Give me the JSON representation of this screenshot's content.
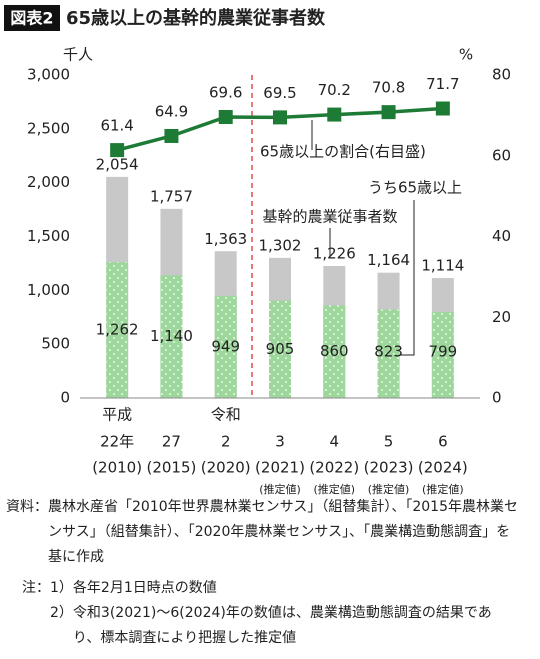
{
  "chart_data": {
    "type": "bar-line",
    "figure_label": "図表2",
    "title": "65歳以上の基幹的農業従事者数",
    "y_unit": "千人",
    "y2_unit": "%",
    "era_labels": [
      "平成",
      null,
      "令和",
      null,
      null,
      null,
      null
    ],
    "categories": [
      "22年",
      "27",
      "2",
      "3",
      "4",
      "5",
      "6"
    ],
    "years": [
      "(2010)",
      "(2015)",
      "(2020)",
      "(2021)",
      "(2022)",
      "(2023)",
      "(2024)"
    ],
    "estimate_labels": [
      null,
      null,
      null,
      "(推定値)",
      "(推定値)",
      "(推定値)",
      "(推定値)"
    ],
    "ylim": [
      0,
      3000
    ],
    "yticks": [
      0,
      500,
      {
        "value": 1000,
        "label": "1,000"
      },
      {
        "value": 1500,
        "label": "1,500"
      },
      {
        "value": 2000,
        "label": "2,000"
      },
      {
        "value": 2500,
        "label": "2,500"
      },
      {
        "value": 3000,
        "label": "3,000"
      }
    ],
    "y2lim": [
      0,
      80
    ],
    "y2ticks": [
      0,
      20,
      40,
      60,
      80
    ],
    "series": [
      {
        "name": "基幹的農業従事者数",
        "color": "#c8c8c8",
        "kind": "bar",
        "values": [
          2054,
          1757,
          1363,
          1302,
          1226,
          1164,
          1114
        ],
        "value_labels": [
          "2,054",
          "1,757",
          "1,363",
          "1,302",
          "1,226",
          "1,164",
          "1,114"
        ]
      },
      {
        "name": "うち65歳以上",
        "color": "#9ed79c",
        "kind": "bar",
        "values": [
          1262,
          1140,
          949,
          905,
          860,
          823,
          799
        ],
        "value_labels": [
          "1,262",
          "1,140",
          "949",
          "905",
          "860",
          "823",
          "799"
        ]
      },
      {
        "name": "65歳以上の割合(右目盛)",
        "color": "#1e7b36",
        "kind": "line",
        "axis": "y2",
        "values": [
          61.4,
          64.9,
          69.6,
          69.5,
          70.2,
          70.8,
          71.7
        ]
      }
    ]
  },
  "notes": {
    "source_label": "資料：",
    "source": "農林水産省「2010年世界農林業センサス」（組替集計）、「2015年農林業センサス」（組替集計）、「2020年農林業センサス」、「農業構造動態調査」を基に作成",
    "note_label": "注：",
    "items": [
      {
        "num": "1）",
        "text": "各年2月1日時点の数値"
      },
      {
        "num": "2）",
        "text": "令和3(2021)～6(2024)年の数値は、農業構造動態調査の結果であり、標本調査により把握した推定値"
      }
    ]
  }
}
